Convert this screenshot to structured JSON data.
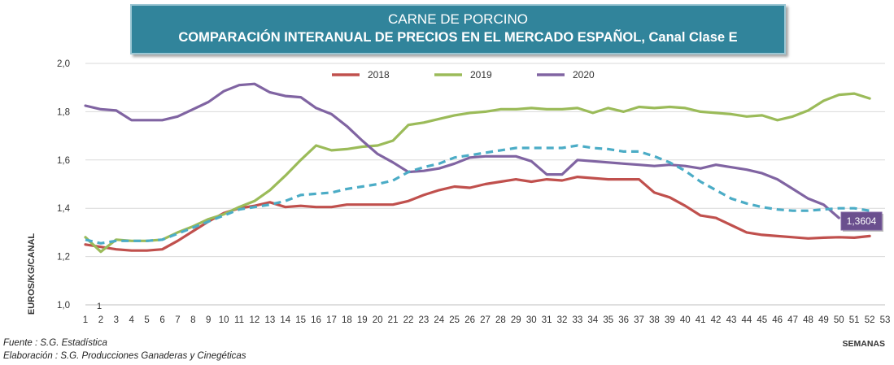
{
  "header": {
    "title": "CARNE DE PORCINO",
    "subtitle": "COMPARACIÓN INTERANUAL DE PRECIOS EN EL MERCADO ESPAÑOL, Canal Clase E"
  },
  "footer": {
    "source": "Fuente :  S.G. Estadística",
    "elaboration": "Elaboración : S.G. Producciones Ganaderas y Cinegéticas"
  },
  "chart_data": {
    "type": "line",
    "ylabel": "EUROS/KG/CANAL",
    "xlabel": "SEMANAS",
    "ylim": [
      1.0,
      2.0
    ],
    "yticks": [
      "1,0",
      "1,2",
      "1,4",
      "1,6",
      "1,8",
      "2,0"
    ],
    "xlim": [
      1,
      53
    ],
    "xticks": [
      "1",
      "2",
      "3",
      "4",
      "5",
      "6",
      "7",
      "8",
      "9",
      "10",
      "11",
      "12",
      "13",
      "14",
      "15",
      "16",
      "17",
      "18",
      "19",
      "20",
      "21",
      "22",
      "23",
      "24",
      "25",
      "26",
      "27",
      "28",
      "29",
      "30",
      "31",
      "32",
      "33",
      "34",
      "35",
      "36",
      "37",
      "38",
      "39",
      "40",
      "41",
      "42",
      "43",
      "44",
      "45",
      "46",
      "47",
      "48",
      "49",
      "50",
      "51",
      "52",
      "53"
    ],
    "grid": true,
    "legend_position": "top-center",
    "annotation": {
      "label": "1,3604",
      "x": 50,
      "value": 1.3604
    },
    "extra_tick_label": "1",
    "series": [
      {
        "name": "2018",
        "color": "#c0504d",
        "style": "solid",
        "x": [
          1,
          2,
          3,
          4,
          5,
          6,
          7,
          8,
          9,
          10,
          11,
          12,
          13,
          14,
          15,
          16,
          17,
          18,
          19,
          20,
          21,
          22,
          23,
          24,
          25,
          26,
          27,
          28,
          29,
          30,
          31,
          32,
          33,
          34,
          35,
          36,
          37,
          38,
          39,
          40,
          41,
          42,
          43,
          44,
          45,
          46,
          47,
          48,
          49,
          50,
          51,
          52
        ],
        "values": [
          1.25,
          1.24,
          1.23,
          1.225,
          1.225,
          1.23,
          1.265,
          1.305,
          1.345,
          1.38,
          1.4,
          1.41,
          1.425,
          1.405,
          1.41,
          1.405,
          1.405,
          1.415,
          1.415,
          1.415,
          1.415,
          1.43,
          1.455,
          1.475,
          1.49,
          1.485,
          1.5,
          1.51,
          1.52,
          1.51,
          1.52,
          1.515,
          1.53,
          1.525,
          1.52,
          1.52,
          1.52,
          1.465,
          1.445,
          1.41,
          1.37,
          1.36,
          1.33,
          1.3,
          1.29,
          1.285,
          1.28,
          1.275,
          1.278,
          1.28,
          1.278,
          1.285
        ]
      },
      {
        "name": "2019",
        "color": "#9bbb59",
        "style": "solid",
        "x": [
          1,
          2,
          3,
          4,
          5,
          6,
          7,
          8,
          9,
          10,
          11,
          12,
          13,
          14,
          15,
          16,
          17,
          18,
          19,
          20,
          21,
          22,
          23,
          24,
          25,
          26,
          27,
          28,
          29,
          30,
          31,
          32,
          33,
          34,
          35,
          36,
          37,
          38,
          39,
          40,
          41,
          42,
          43,
          44,
          45,
          46,
          47,
          48,
          49,
          50,
          51,
          52
        ],
        "values": [
          1.28,
          1.22,
          1.27,
          1.265,
          1.265,
          1.27,
          1.3,
          1.325,
          1.355,
          1.375,
          1.405,
          1.43,
          1.475,
          1.535,
          1.6,
          1.66,
          1.64,
          1.645,
          1.655,
          1.66,
          1.68,
          1.745,
          1.755,
          1.77,
          1.785,
          1.795,
          1.8,
          1.81,
          1.81,
          1.815,
          1.81,
          1.81,
          1.815,
          1.795,
          1.815,
          1.8,
          1.82,
          1.815,
          1.82,
          1.815,
          1.8,
          1.795,
          1.79,
          1.78,
          1.785,
          1.765,
          1.78,
          1.805,
          1.845,
          1.87,
          1.875,
          1.855
        ]
      },
      {
        "name": "2020",
        "color": "#8064a2",
        "style": "solid",
        "x": [
          1,
          2,
          3,
          4,
          5,
          6,
          7,
          8,
          9,
          10,
          11,
          12,
          13,
          14,
          15,
          16,
          17,
          18,
          19,
          20,
          21,
          22,
          23,
          24,
          25,
          26,
          27,
          28,
          29,
          30,
          31,
          32,
          33,
          34,
          35,
          36,
          37,
          38,
          39,
          40,
          41,
          42,
          43,
          44,
          45,
          46,
          47,
          48,
          49,
          50
        ],
        "values": [
          1.825,
          1.81,
          1.805,
          1.765,
          1.765,
          1.765,
          1.78,
          1.81,
          1.84,
          1.885,
          1.91,
          1.915,
          1.88,
          1.865,
          1.86,
          1.815,
          1.79,
          1.74,
          1.68,
          1.625,
          1.59,
          1.55,
          1.555,
          1.565,
          1.585,
          1.61,
          1.615,
          1.615,
          1.615,
          1.595,
          1.54,
          1.54,
          1.6,
          1.595,
          1.59,
          1.585,
          1.58,
          1.575,
          1.58,
          1.575,
          1.565,
          1.58,
          1.57,
          1.56,
          1.545,
          1.52,
          1.48,
          1.44,
          1.415,
          1.3604
        ]
      },
      {
        "name": "",
        "color": "#4bacc6",
        "style": "dashed",
        "x": [
          1,
          2,
          3,
          4,
          5,
          6,
          7,
          8,
          9,
          10,
          11,
          12,
          13,
          14,
          15,
          16,
          17,
          18,
          19,
          20,
          21,
          22,
          23,
          24,
          25,
          26,
          27,
          28,
          29,
          30,
          31,
          32,
          33,
          34,
          35,
          36,
          37,
          38,
          39,
          40,
          41,
          42,
          43,
          44,
          45,
          46,
          47,
          48,
          49,
          50,
          51,
          52
        ],
        "values": [
          1.27,
          1.255,
          1.265,
          1.265,
          1.265,
          1.27,
          1.295,
          1.32,
          1.345,
          1.37,
          1.395,
          1.405,
          1.415,
          1.43,
          1.455,
          1.46,
          1.465,
          1.48,
          1.49,
          1.5,
          1.515,
          1.55,
          1.57,
          1.585,
          1.61,
          1.62,
          1.63,
          1.64,
          1.65,
          1.65,
          1.65,
          1.65,
          1.66,
          1.65,
          1.645,
          1.635,
          1.635,
          1.615,
          1.59,
          1.555,
          1.51,
          1.475,
          1.44,
          1.42,
          1.405,
          1.395,
          1.39,
          1.39,
          1.395,
          1.4,
          1.4,
          1.39
        ]
      }
    ]
  }
}
